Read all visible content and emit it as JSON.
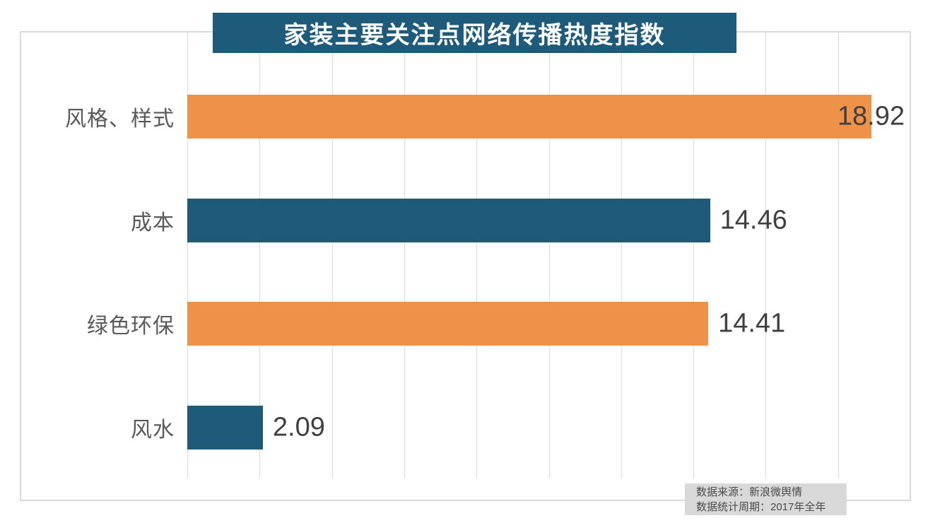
{
  "title": "家装主要关注点网络传播热度指数",
  "footer": {
    "source": "数据来源：新浪微舆情",
    "period": "数据统计周期：2017年全年"
  },
  "colors": {
    "banner_bg": "#1E5A7A",
    "banner_text": "#FFFFFF",
    "bar_orange": "#EF9249",
    "bar_teal": "#1E5A7A",
    "gridline": "#D9D9D9",
    "border": "#D9D9D9",
    "category_text": "#595959",
    "value_text": "#3F3F3F",
    "source_bg": "#D9D9D9",
    "source_text": "#4A4A4A"
  },
  "chart_data": {
    "type": "bar",
    "orientation": "horizontal",
    "title": "家装主要关注点网络传播热度指数",
    "categories": [
      "风格、样式",
      "成本",
      "绿色环保",
      "风水"
    ],
    "values": [
      18.92,
      14.46,
      14.41,
      2.09
    ],
    "value_labels": [
      "18.92",
      "14.46",
      "14.41",
      "2.09"
    ],
    "bar_colors": [
      "#EF9249",
      "#1E5A7A",
      "#EF9249",
      "#1E5A7A"
    ],
    "xlim": [
      0,
      20
    ],
    "gridline_interval": 2,
    "grid": "vertical",
    "legend": "none",
    "x_tick_labels_visible": false,
    "source": "数据来源：新浪微舆情",
    "period": "数据统计周期：2017年全年"
  }
}
